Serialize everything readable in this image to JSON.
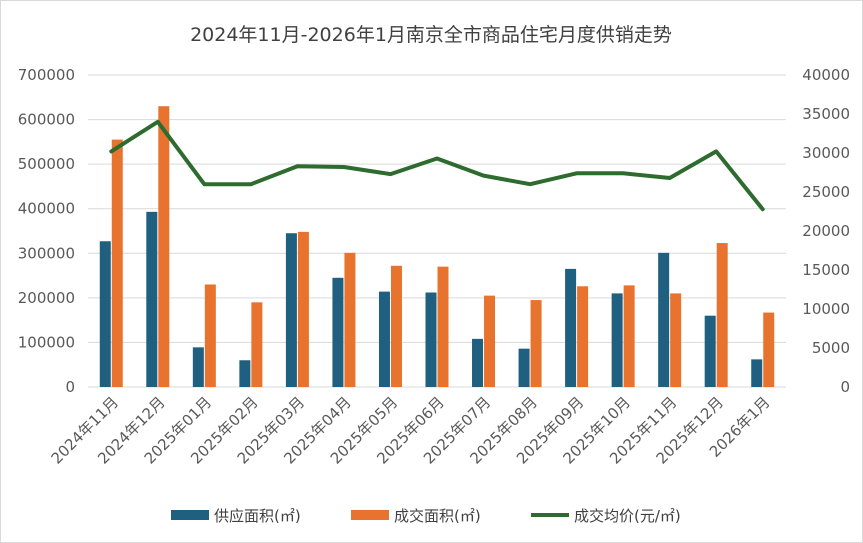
{
  "chart_data": {
    "type": "bar",
    "title": "2024年11月-2026年1月南京全市商品住宅月度供销走势",
    "categories": [
      "2024年11月",
      "2024年12月",
      "2025年01月",
      "2025年02月",
      "2025年03月",
      "2025年04月",
      "2025年05月",
      "2025年06月",
      "2025年07月",
      "2025年08月",
      "2025年09月",
      "2025年10月",
      "2025年11月",
      "2025年12月",
      "2026年1月"
    ],
    "series": [
      {
        "name": "供应面积(㎡)",
        "kind": "bar",
        "axis": "left",
        "color": "#1f5f7f",
        "values": [
          327000,
          393000,
          89000,
          60000,
          345000,
          245000,
          214000,
          212000,
          108000,
          86000,
          265000,
          210000,
          301000,
          160000,
          62000
        ]
      },
      {
        "name": "成交面积(㎡)",
        "kind": "bar",
        "axis": "left",
        "color": "#e8732e",
        "values": [
          555000,
          630000,
          230000,
          190000,
          348000,
          301000,
          272000,
          270000,
          205000,
          195000,
          226000,
          228000,
          210000,
          323000,
          167000
        ]
      },
      {
        "name": "成交均价(元/㎡)",
        "kind": "line",
        "axis": "right",
        "color": "#2e6b2e",
        "values": [
          30200,
          34000,
          26000,
          26000,
          28300,
          28200,
          27300,
          29300,
          27100,
          26000,
          27400,
          27400,
          26800,
          30200,
          22800
        ]
      }
    ],
    "y_left": {
      "range": [
        0,
        700000
      ],
      "ticks": [
        "0",
        "100000",
        "200000",
        "300000",
        "400000",
        "500000",
        "600000",
        "700000"
      ]
    },
    "y_right": {
      "range": [
        0,
        40000
      ],
      "ticks": [
        "0",
        "5000",
        "10000",
        "15000",
        "20000",
        "25000",
        "30000",
        "35000",
        "40000"
      ]
    },
    "grid": true,
    "legend_position": "bottom"
  }
}
